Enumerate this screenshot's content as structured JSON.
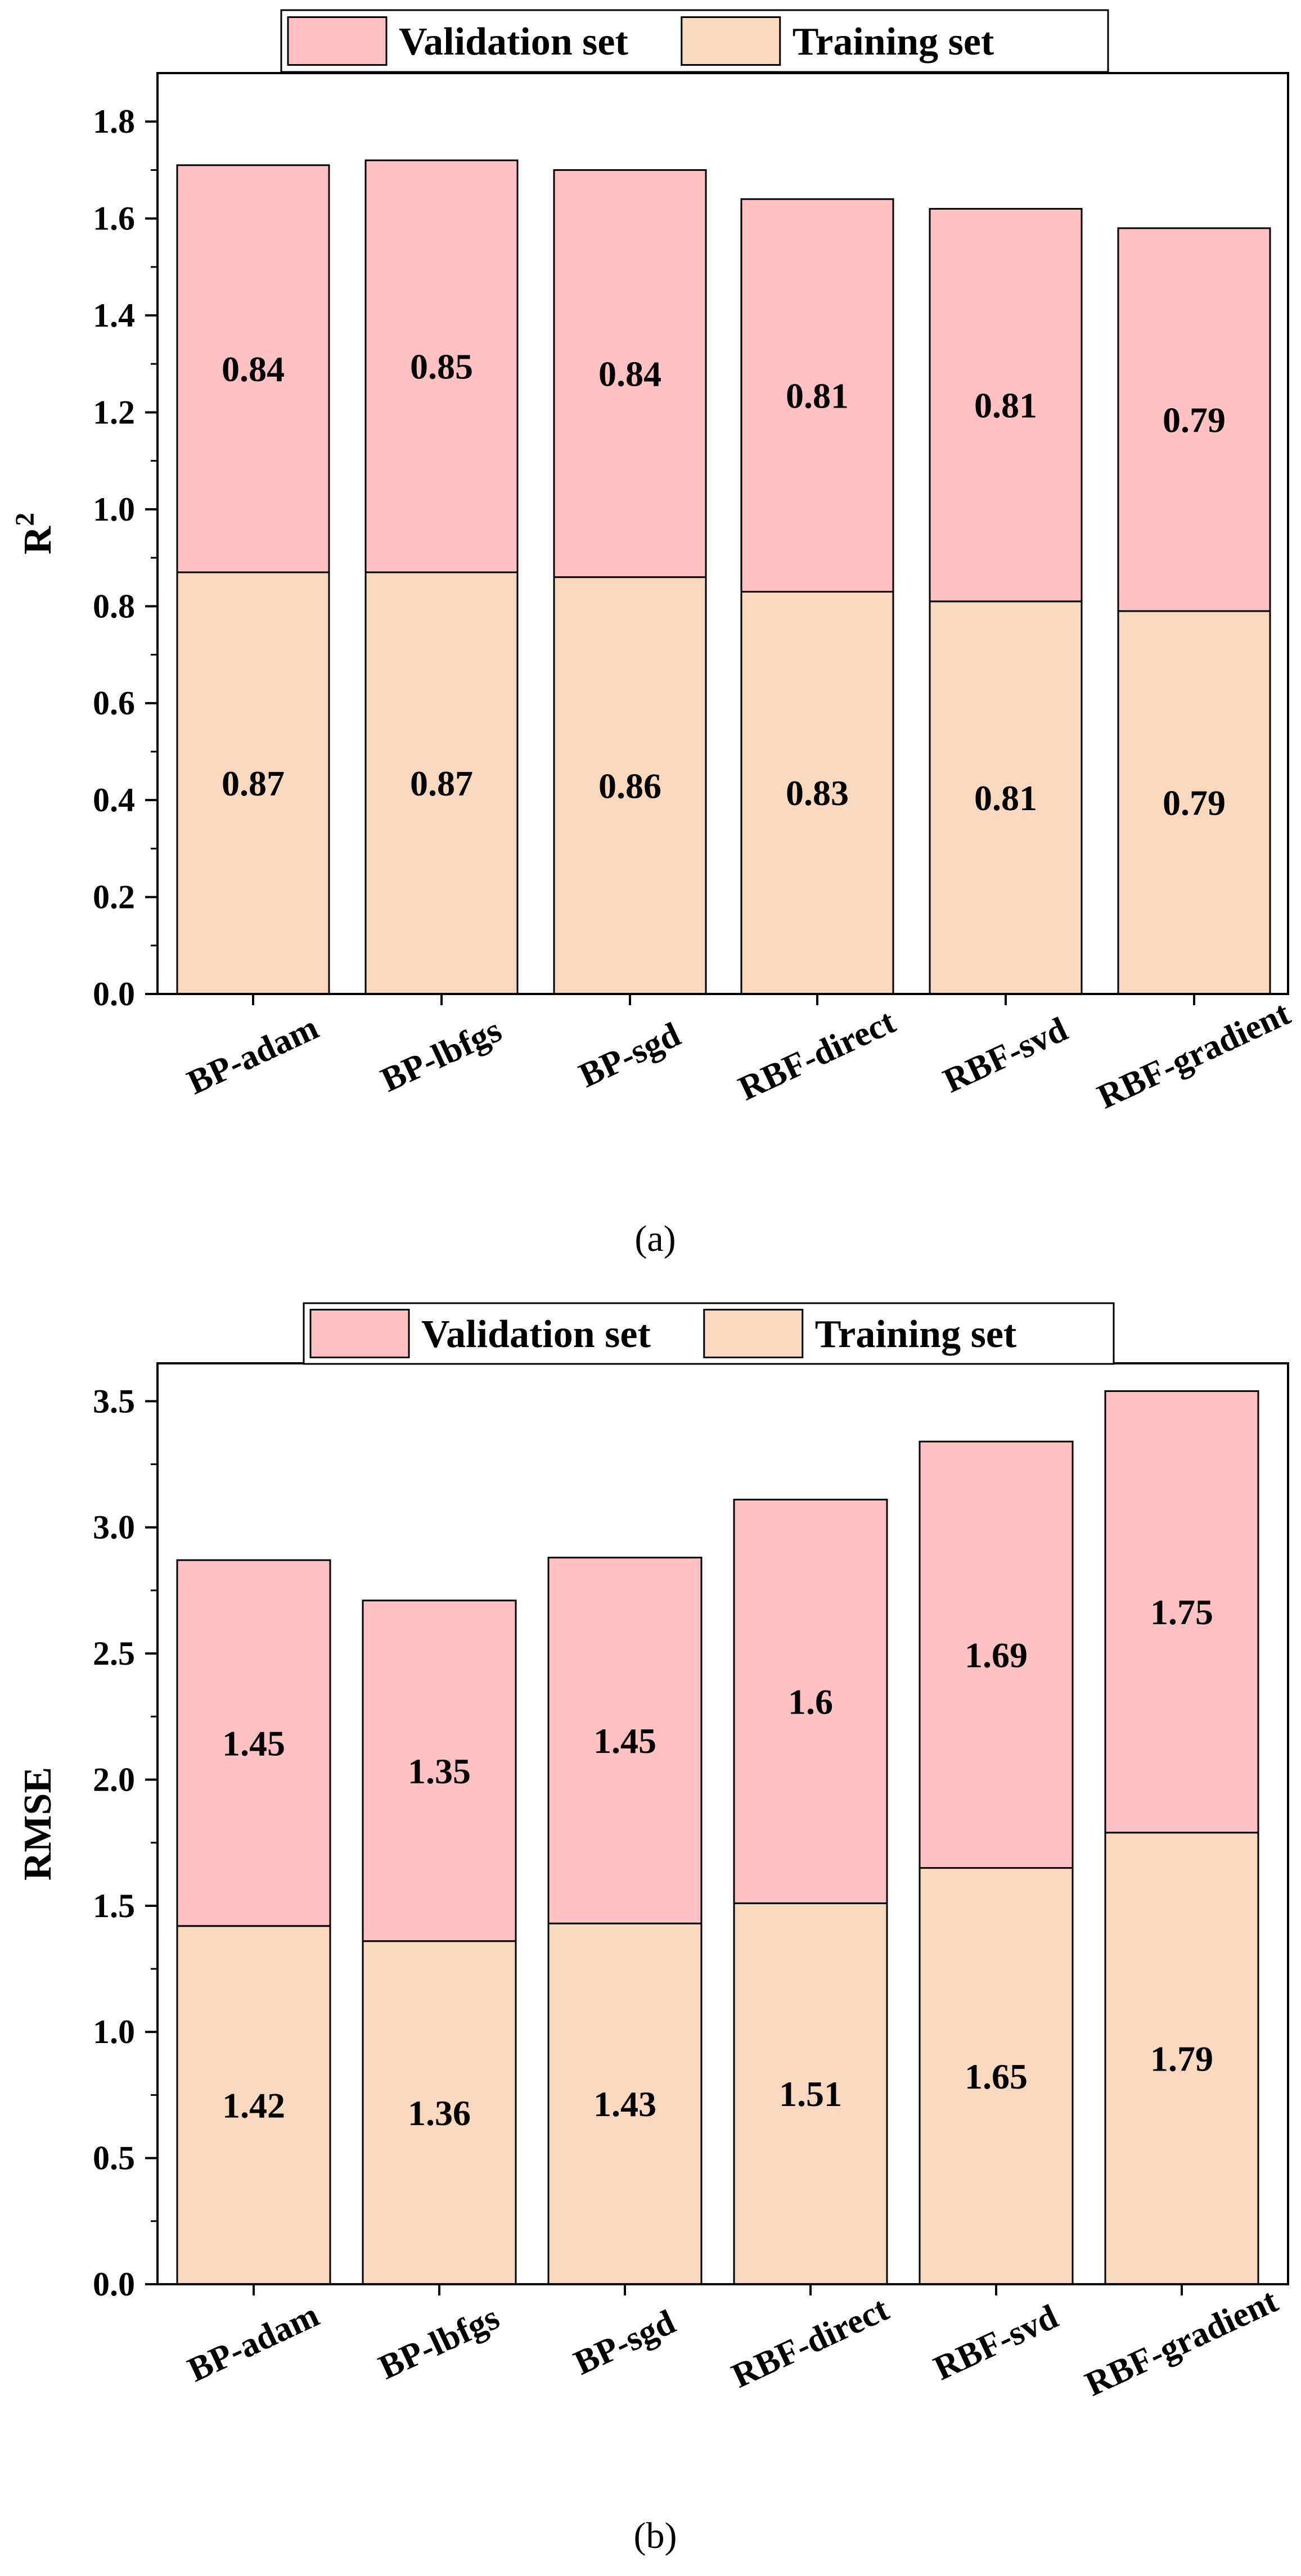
{
  "colors": {
    "validation": "#ffc1c1",
    "training": "#f9d9bd",
    "stroke": "#000000"
  },
  "chart_data": [
    {
      "panel_label": "(a)",
      "type": "bar",
      "stacked": true,
      "categories": [
        "BP-adam",
        "BP-lbfgs",
        "BP-sgd",
        "RBF-direct",
        "RBF-svd",
        "RBF-gradient"
      ],
      "series": [
        {
          "name": "Training set",
          "values": [
            0.87,
            0.87,
            0.86,
            0.83,
            0.81,
            0.79
          ],
          "labels": [
            "0.87",
            "0.87",
            "0.86",
            "0.83",
            "0.81",
            "0.79"
          ]
        },
        {
          "name": "Validation set",
          "values": [
            0.84,
            0.85,
            0.84,
            0.81,
            0.81,
            0.79
          ],
          "labels": [
            "0.84",
            "0.85",
            "0.84",
            "0.81",
            "0.81",
            "0.79"
          ]
        }
      ],
      "legend_order": [
        "Validation set",
        "Training set"
      ],
      "legend_position": "top-center",
      "ylabel": "R",
      "ylabel_superscript": "2",
      "xlabel": "",
      "ylim": [
        0,
        1.9
      ],
      "yticks": [
        0.0,
        0.2,
        0.4,
        0.6,
        0.8,
        1.0,
        1.2,
        1.4,
        1.6,
        1.8
      ],
      "ytick_labels": [
        "0.0",
        "0.2",
        "0.4",
        "0.6",
        "0.8",
        "1.0",
        "1.2",
        "1.4",
        "1.6",
        "1.8"
      ],
      "grid": false
    },
    {
      "panel_label": "(b)",
      "type": "bar",
      "stacked": true,
      "categories": [
        "BP-adam",
        "BP-lbfgs",
        "BP-sgd",
        "RBF-direct",
        "RBF-svd",
        "RBF-gradient"
      ],
      "series": [
        {
          "name": "Training set",
          "values": [
            1.42,
            1.36,
            1.43,
            1.51,
            1.65,
            1.79
          ],
          "labels": [
            "1.42",
            "1.36",
            "1.43",
            "1.51",
            "1.65",
            "1.79"
          ]
        },
        {
          "name": "Validation set",
          "values": [
            1.45,
            1.35,
            1.45,
            1.6,
            1.69,
            1.75
          ],
          "labels": [
            "1.45",
            "1.35",
            "1.45",
            "1.6",
            "1.69",
            "1.75"
          ]
        }
      ],
      "legend_order": [
        "Validation set",
        "Training set"
      ],
      "legend_position": "top-center",
      "ylabel": "RMSE",
      "ylabel_superscript": "",
      "xlabel": "",
      "ylim": [
        0,
        3.65
      ],
      "yticks": [
        0.0,
        0.5,
        1.0,
        1.5,
        2.0,
        2.5,
        3.0,
        3.5
      ],
      "ytick_labels": [
        "0.0",
        "0.5",
        "1.0",
        "1.5",
        "2.0",
        "2.5",
        "3.0",
        "3.5"
      ],
      "grid": false
    }
  ]
}
